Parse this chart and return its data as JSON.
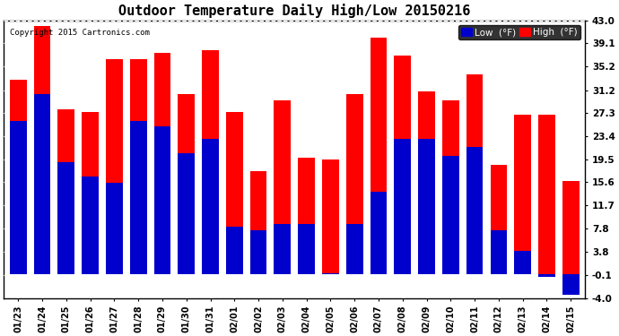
{
  "title": "Outdoor Temperature Daily High/Low 20150216",
  "copyright": "Copyright 2015 Cartronics.com",
  "dates": [
    "01/23",
    "01/24",
    "01/25",
    "01/26",
    "01/27",
    "01/28",
    "01/29",
    "01/30",
    "01/31",
    "02/01",
    "02/02",
    "02/03",
    "02/04",
    "02/05",
    "02/06",
    "02/07",
    "02/08",
    "02/09",
    "02/10",
    "02/11",
    "02/12",
    "02/13",
    "02/14",
    "02/15"
  ],
  "highs": [
    33.0,
    42.0,
    28.0,
    27.5,
    36.5,
    36.5,
    37.5,
    30.5,
    38.0,
    27.5,
    17.5,
    29.5,
    19.8,
    19.5,
    30.5,
    40.0,
    37.0,
    31.0,
    29.5,
    33.8,
    18.5,
    27.0,
    27.0,
    15.8
  ],
  "lows": [
    26.0,
    30.5,
    19.0,
    16.5,
    15.5,
    26.0,
    25.0,
    20.5,
    23.0,
    8.0,
    7.5,
    8.5,
    8.5,
    0.2,
    8.5,
    14.0,
    23.0,
    23.0,
    20.0,
    21.5,
    7.5,
    4.0,
    -0.5,
    -3.5
  ],
  "ylim": [
    -4.0,
    43.0
  ],
  "yticks": [
    -4.0,
    -0.1,
    3.8,
    7.8,
    11.7,
    15.6,
    19.5,
    23.4,
    27.3,
    31.2,
    35.2,
    39.1,
    43.0
  ],
  "high_color": "#ff0000",
  "low_color": "#0000cc",
  "bg_color": "#ffffff",
  "grid_color": "#cccccc",
  "bar_width": 0.7,
  "legend_low_label": "Low  (°F)",
  "legend_high_label": "High  (°F)"
}
